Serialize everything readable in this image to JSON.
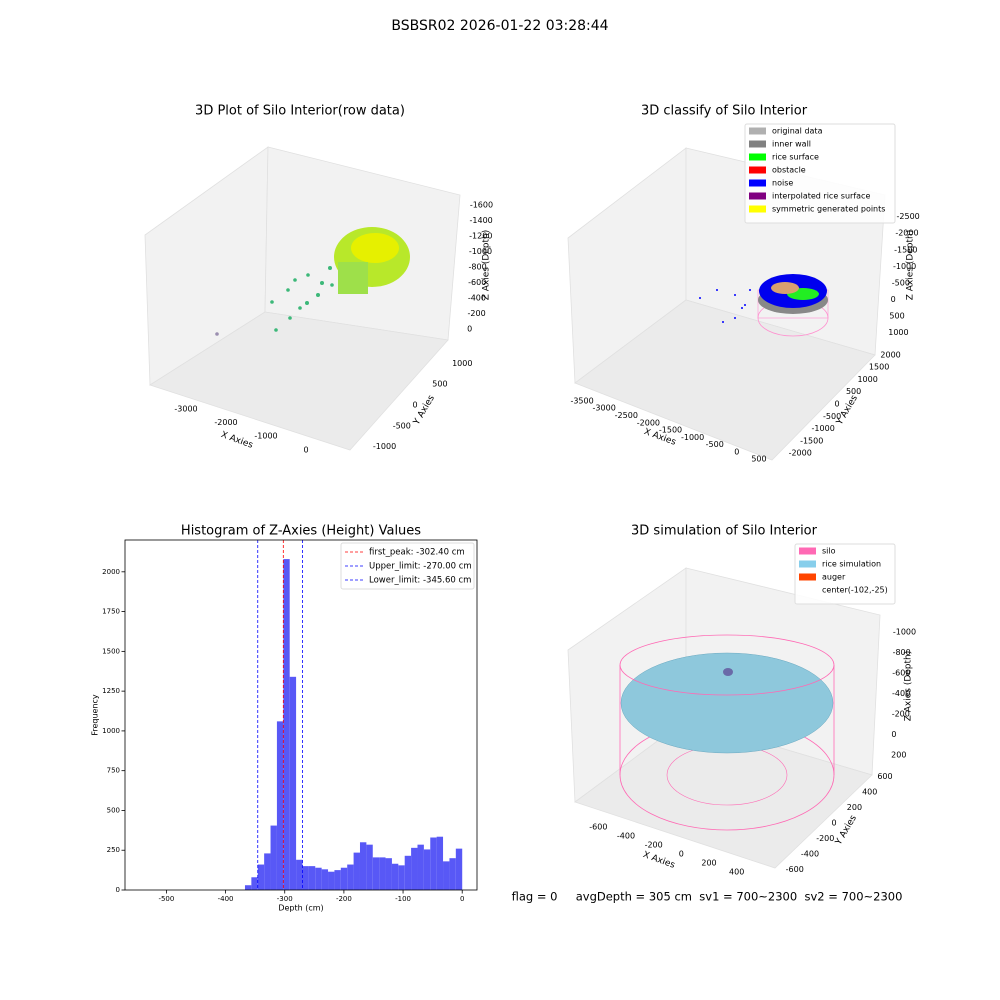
{
  "title": "BSBSR02 2026-01-22 03:28:44",
  "footer": "flag = 0     avgDepth = 305 cm  sv1 = 700~2300  sv2 = 700~2300",
  "chart_data": [
    {
      "type": "scatter3d",
      "title": "3D Plot of Silo Interior(row data)",
      "xlabel": "X Axies",
      "ylabel": "Y Axies",
      "zlabel": "Z Axies (Depth)",
      "xlim": [
        -3600,
        300
      ],
      "xticks": [
        -3000,
        -2000,
        -1000,
        0
      ],
      "ylim": [
        -1200,
        1200
      ],
      "yticks": [
        -1000,
        -500,
        0,
        500,
        1000
      ],
      "zlim": [
        -1700,
        100
      ],
      "zticks": [
        -1600,
        -1400,
        -1200,
        -1000,
        -800,
        -600,
        -400,
        -200,
        0
      ]
    },
    {
      "type": "scatter3d",
      "title": "3D classify of Silo Interior",
      "xlabel": "X Axies",
      "ylabel": "Y Axies",
      "zlabel": "Z Axies (Depth)",
      "xlim": [
        -3800,
        700
      ],
      "xticks": [
        -3500,
        -3000,
        -2500,
        -2000,
        -1500,
        -1000,
        -500,
        0,
        500
      ],
      "ylim": [
        -2200,
        2200
      ],
      "yticks": [
        -2000,
        -1500,
        -1000,
        -500,
        0,
        500,
        1000,
        1500,
        2000
      ],
      "zlim": [
        -2700,
        1100
      ],
      "zticks": [
        -2500,
        -2000,
        -1500,
        -1000,
        -500,
        0,
        500,
        1000
      ],
      "legend": {
        "loc": "upper right",
        "entries": [
          {
            "name": "original data",
            "color": "#b0b0b0"
          },
          {
            "name": "inner wall",
            "color": "#808080"
          },
          {
            "name": "rice surface",
            "color": "#00ff00"
          },
          {
            "name": "obstacle",
            "color": "#ff0000"
          },
          {
            "name": "noise",
            "color": "#0000ff"
          },
          {
            "name": "interpolated rice surface",
            "color": "#800080"
          },
          {
            "name": "symmetric generated points",
            "color": "#ffff00"
          }
        ]
      }
    },
    {
      "type": "histogram",
      "title": "Histogram of Z-Axies (Height) Values",
      "xlabel": "Depth (cm)",
      "ylabel": "Frequency",
      "color": "#4f4ff5",
      "bins": [
        -367.2,
        -356.4,
        -345.6,
        -334.8,
        -324,
        -313.2,
        -302.4,
        -291.6,
        -280.8,
        -270,
        -259.2,
        -248.4,
        -237.6,
        -226.8,
        -216,
        -205.2,
        -194.4,
        -183.6,
        -172.8,
        -162,
        -151.2,
        -140.4,
        -129.6,
        -118.8,
        -108,
        -97.2,
        -86.4,
        -75.6,
        -64.8,
        -54,
        -43.2,
        -32.4,
        -21.6,
        -10.8,
        0
      ],
      "values": [
        30,
        80,
        160,
        230,
        405,
        1060,
        2080,
        1340,
        190,
        150,
        150,
        140,
        130,
        115,
        125,
        140,
        160,
        235,
        300,
        285,
        205,
        205,
        200,
        165,
        155,
        215,
        265,
        285,
        255,
        330,
        335,
        180,
        200,
        260
      ],
      "xlim": [
        -570,
        25
      ],
      "xticks": [
        -500,
        -400,
        -300,
        -200,
        -100,
        0
      ],
      "ylim": [
        0,
        2200
      ],
      "yticks": [
        0,
        250,
        500,
        750,
        1000,
        1250,
        1500,
        1750,
        2000
      ],
      "vlines": [
        {
          "name": "first_peak: -302.40 cm",
          "value": -302.4,
          "color": "#ff0000"
        },
        {
          "name": "Upper_limit: -270.00 cm",
          "value": -270,
          "color": "#0000ff"
        },
        {
          "name": "Lower_limit: -345.60 cm",
          "value": -345.6,
          "color": "#0000ff"
        }
      ],
      "legend": {
        "loc": "upper right"
      }
    },
    {
      "type": "surface3d",
      "title": "3D simulation of Silo Interior",
      "xlabel": "X Axies",
      "ylabel": "Y Axies",
      "zlabel": "Z Axies (Depth)",
      "xlim": [
        -700,
        500
      ],
      "xticks": [
        -600,
        -400,
        -200,
        0,
        200,
        400
      ],
      "ylim": [
        -700,
        700
      ],
      "yticks": [
        -600,
        -400,
        -200,
        0,
        200,
        400,
        600
      ],
      "zlim": [
        -1100,
        300
      ],
      "zticks": [
        -1000,
        -800,
        -600,
        -400,
        -200,
        0,
        200
      ],
      "legend": {
        "loc": "upper right",
        "entries": [
          {
            "name": "silo",
            "color": "#ff69b4"
          },
          {
            "name": "rice simulation",
            "color": "#87ceeb"
          },
          {
            "name": "auger",
            "color": "#ff4500"
          },
          {
            "name": "center(-102,-25)"
          }
        ]
      }
    }
  ]
}
